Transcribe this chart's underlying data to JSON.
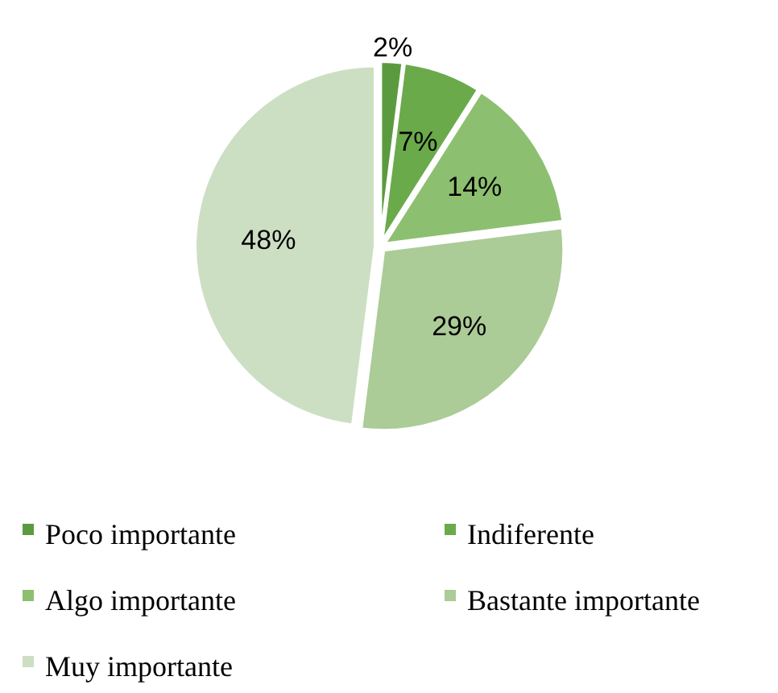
{
  "chart_data": {
    "type": "pie",
    "categories": [
      "Poco importante",
      "Indiferente",
      "Algo importante",
      "Bastante importante",
      "Muy importante"
    ],
    "values": [
      2,
      7,
      14,
      29,
      48
    ],
    "colors": [
      "#5b9b3f",
      "#6aaa4b",
      "#8dbf71",
      "#abcb97",
      "#cddfc3"
    ],
    "value_labels": [
      "2%",
      "7%",
      "14%",
      "29%",
      "48%"
    ],
    "legend": "bottom"
  }
}
